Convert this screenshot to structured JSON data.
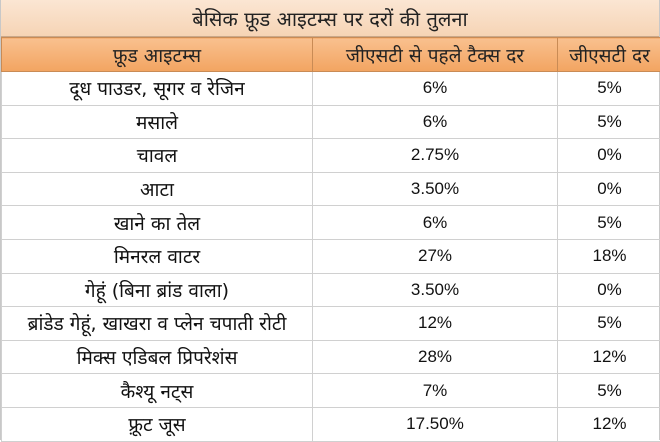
{
  "title": "बेसिक फ़ूड आइटम्स पर दरों की तुलना",
  "columns": [
    "फ़ूड आइटम्स",
    "जीएसटी से पहले टैक्स दर",
    "जीएसटी दर"
  ],
  "rows": [
    {
      "item": "दूध पाउडर, सूगर व रेजिन",
      "pre_gst": "6%",
      "gst": "5%"
    },
    {
      "item": "मसाले",
      "pre_gst": "6%",
      "gst": "5%"
    },
    {
      "item": "चावल",
      "pre_gst": "2.75%",
      "gst": "0%"
    },
    {
      "item": "आटा",
      "pre_gst": "3.50%",
      "gst": "0%"
    },
    {
      "item": "खाने का तेल",
      "pre_gst": "6%",
      "gst": "5%"
    },
    {
      "item": "मिनरल वाटर",
      "pre_gst": "27%",
      "gst": "18%"
    },
    {
      "item": "गेहूं (बिना ब्रांड वाला)",
      "pre_gst": "3.50%",
      "gst": "0%"
    },
    {
      "item": "ब्रांडेड गेहूं, खाखरा व प्लेन चपाती रोटी",
      "pre_gst": "12%",
      "gst": "5%"
    },
    {
      "item": "मिक्स एडिबल प्रिपरेशंस",
      "pre_gst": "28%",
      "gst": "12%"
    },
    {
      "item": "कैश्यू नट्स",
      "pre_gst": "7%",
      "gst": "5%"
    },
    {
      "item": "फ़्रूट जूस",
      "pre_gst": "17.50%",
      "gst": "12%"
    }
  ],
  "colors": {
    "title_bg": "#f8dcc2",
    "header_bg": "#f5b27a",
    "grid": "#d0d0d0"
  }
}
